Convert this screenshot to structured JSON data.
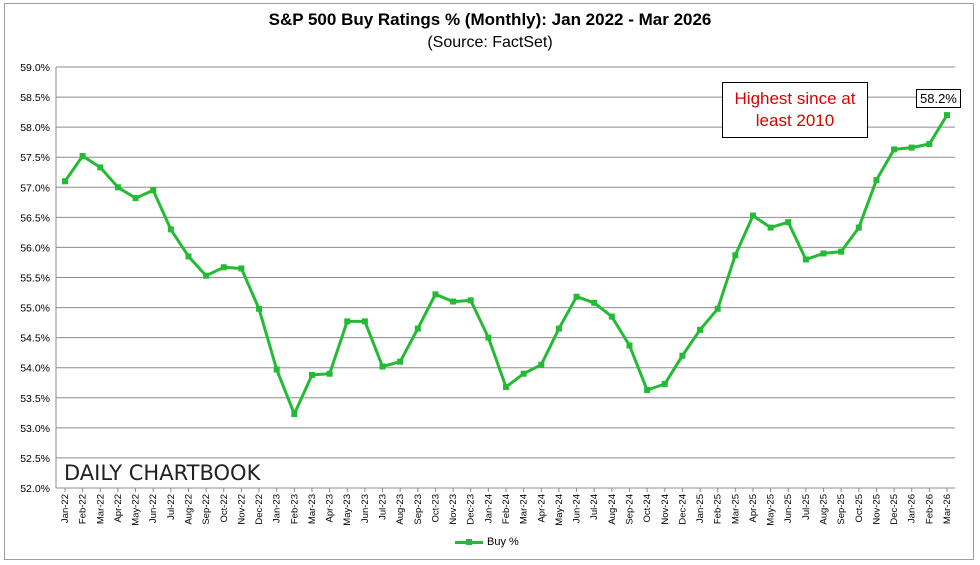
{
  "chart_data": {
    "type": "line",
    "title": "S&P 500 Buy Ratings % (Monthly):  Jan 2022 - Mar 2026",
    "subtitle": "(Source: FactSet)",
    "ylim": [
      52.0,
      59.0
    ],
    "ytick_labels": [
      "59.0%",
      "58.5%",
      "58.0%",
      "57.5%",
      "57.0%",
      "56.5%",
      "56.0%",
      "55.5%",
      "55.0%",
      "54.5%",
      "54.0%",
      "53.5%",
      "53.0%",
      "52.5%",
      "52.0%"
    ],
    "categories": [
      "Jan-22",
      "Feb-22",
      "Mar-22",
      "Apr-22",
      "May-22",
      "Jun-22",
      "Jul-22",
      "Aug-22",
      "Sep-22",
      "Oct-22",
      "Nov-22",
      "Dec-22",
      "Jan-23",
      "Feb-23",
      "Mar-23",
      "Apr-23",
      "May-23",
      "Jun-23",
      "Jul-23",
      "Aug-23",
      "Sep-23",
      "Oct-23",
      "Nov-23",
      "Dec-23",
      "Jan-24",
      "Feb-24",
      "Mar-24",
      "Apr-24",
      "May-24",
      "Jun-24",
      "Jul-24",
      "Aug-24",
      "Sep-24",
      "Oct-24",
      "Nov-24",
      "Dec-24",
      "Jan-25",
      "Feb-25",
      "Mar-25",
      "Apr-25",
      "May-25",
      "Jun-25",
      "Jul-25",
      "Aug-25",
      "Sep-25",
      "Oct-25",
      "Nov-25",
      "Dec-25",
      "Jan-26",
      "Feb-26",
      "Mar-26"
    ],
    "series": [
      {
        "name": "Buy %",
        "color": "#22bb33",
        "values": [
          57.1,
          57.52,
          57.33,
          57.0,
          56.82,
          56.95,
          56.3,
          55.85,
          55.53,
          55.67,
          55.65,
          54.98,
          53.97,
          53.23,
          53.88,
          53.9,
          54.77,
          54.77,
          54.02,
          54.1,
          54.65,
          55.22,
          55.1,
          55.12,
          54.5,
          53.68,
          53.9,
          54.05,
          54.65,
          55.18,
          55.08,
          54.85,
          54.37,
          53.63,
          53.73,
          54.2,
          54.63,
          54.98,
          55.87,
          56.53,
          56.33,
          56.42,
          55.8,
          55.9,
          55.93,
          56.33,
          57.12,
          57.63,
          57.66,
          57.72,
          58.2
        ]
      }
    ],
    "legend": "bottom-center",
    "annotation": "Highest since at least 2010",
    "last_value_label": "58.2%",
    "watermark": "DAILY CHARTBOOK",
    "grid": true
  }
}
